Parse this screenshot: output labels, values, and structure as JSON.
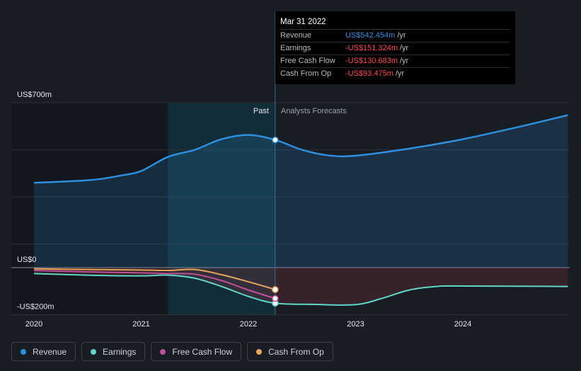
{
  "colors": {
    "revenue": "#2d8fde",
    "earnings": "#5fd6c6",
    "free_cash_flow": "#c0509a",
    "cash_from_op": "#e9a65a",
    "tooltip_negative": "#ff4a4a",
    "tooltip_positive": "#2d8fde"
  },
  "tooltip": {
    "date": "Mar 31 2022",
    "rows": [
      {
        "label": "Revenue",
        "value": "US$542.454m",
        "unit": "/yr",
        "tone": "positive"
      },
      {
        "label": "Earnings",
        "value": "-US$151.324m",
        "unit": "/yr",
        "tone": "negative"
      },
      {
        "label": "Free Cash Flow",
        "value": "-US$130.683m",
        "unit": "/yr",
        "tone": "negative"
      },
      {
        "label": "Cash From Op",
        "value": "-US$93.475m",
        "unit": "/yr",
        "tone": "negative"
      }
    ]
  },
  "legend": [
    {
      "label": "Revenue",
      "color_key": "revenue"
    },
    {
      "label": "Earnings",
      "color_key": "earnings"
    },
    {
      "label": "Free Cash Flow",
      "color_key": "free_cash_flow"
    },
    {
      "label": "Cash From Op",
      "color_key": "cash_from_op"
    }
  ],
  "chart_data": {
    "type": "line",
    "title": "",
    "xlabel": "",
    "ylabel": "",
    "x_range": [
      2019.95,
      2024.98
    ],
    "ylim": [
      -200,
      700
    ],
    "y_tick_labels": [
      {
        "value": 700,
        "label": "US$700m"
      },
      {
        "value": 0,
        "label": "US$0"
      },
      {
        "value": -200,
        "label": "-US$200m"
      }
    ],
    "x_ticks": [
      {
        "value": 2020,
        "label": "2020"
      },
      {
        "value": 2021,
        "label": "2021"
      },
      {
        "value": 2022,
        "label": "2022"
      },
      {
        "value": 2023,
        "label": "2023"
      },
      {
        "value": 2024,
        "label": "2024"
      }
    ],
    "highlight_start": 2021.25,
    "divider_x": 2022.25,
    "past_label": "Past",
    "forecast_label": "Analysts Forecasts",
    "series": [
      {
        "name": "Revenue",
        "key": "revenue",
        "points": [
          [
            2020.0,
            360
          ],
          [
            2020.4,
            368
          ],
          [
            2020.6,
            375
          ],
          [
            2020.8,
            390
          ],
          [
            2021.0,
            410
          ],
          [
            2021.25,
            470
          ],
          [
            2021.5,
            500
          ],
          [
            2021.75,
            545
          ],
          [
            2022.0,
            563
          ],
          [
            2022.25,
            542
          ],
          [
            2022.5,
            500
          ],
          [
            2022.75,
            476
          ],
          [
            2023.0,
            475
          ],
          [
            2023.5,
            505
          ],
          [
            2024.0,
            545
          ],
          [
            2024.5,
            595
          ],
          [
            2024.98,
            647
          ]
        ]
      },
      {
        "name": "Earnings",
        "key": "earnings",
        "points": [
          [
            2020.0,
            -25
          ],
          [
            2020.5,
            -32
          ],
          [
            2021.0,
            -35
          ],
          [
            2021.25,
            -32
          ],
          [
            2021.5,
            -45
          ],
          [
            2021.75,
            -80
          ],
          [
            2022.0,
            -122
          ],
          [
            2022.25,
            -151
          ],
          [
            2022.6,
            -156
          ],
          [
            2023.0,
            -157
          ],
          [
            2023.25,
            -130
          ],
          [
            2023.5,
            -95
          ],
          [
            2023.75,
            -80
          ],
          [
            2024.0,
            -78
          ],
          [
            2024.98,
            -80
          ]
        ]
      },
      {
        "name": "Free Cash Flow",
        "key": "free_cash_flow",
        "points": [
          [
            2020.0,
            -12
          ],
          [
            2020.5,
            -18
          ],
          [
            2021.0,
            -22
          ],
          [
            2021.25,
            -25
          ],
          [
            2021.5,
            -28
          ],
          [
            2021.75,
            -55
          ],
          [
            2022.0,
            -95
          ],
          [
            2022.25,
            -131
          ]
        ]
      },
      {
        "name": "Cash From Op",
        "key": "cash_from_op",
        "points": [
          [
            2020.0,
            -5
          ],
          [
            2020.5,
            -8
          ],
          [
            2021.0,
            -10
          ],
          [
            2021.25,
            -12
          ],
          [
            2021.5,
            -8
          ],
          [
            2021.75,
            -30
          ],
          [
            2022.0,
            -60
          ],
          [
            2022.25,
            -93
          ]
        ]
      }
    ]
  }
}
